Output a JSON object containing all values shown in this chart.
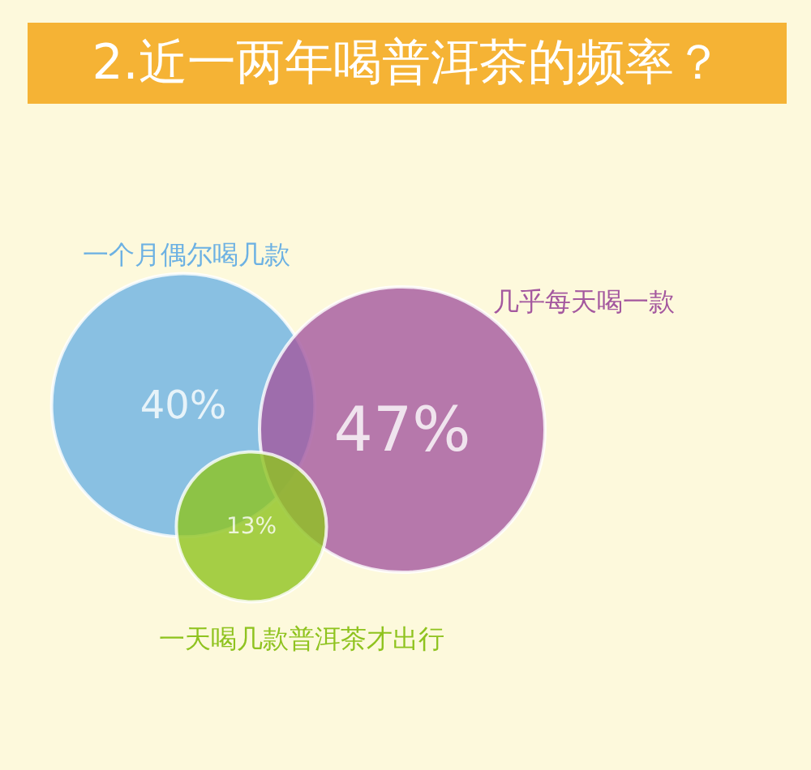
{
  "chart_data": {
    "type": "other",
    "title": "2.近一两年喝普洱茶的频率？",
    "categories": [
      "一个月偶尔喝几款",
      "几乎每天喝一款",
      "一天喝几款普洱茶才出行"
    ],
    "values": [
      40,
      47,
      13
    ],
    "value_labels": [
      "40%",
      "47%",
      "13%"
    ],
    "colors": [
      "#6cb1e3",
      "#a4589f",
      "#8fc31f"
    ]
  }
}
